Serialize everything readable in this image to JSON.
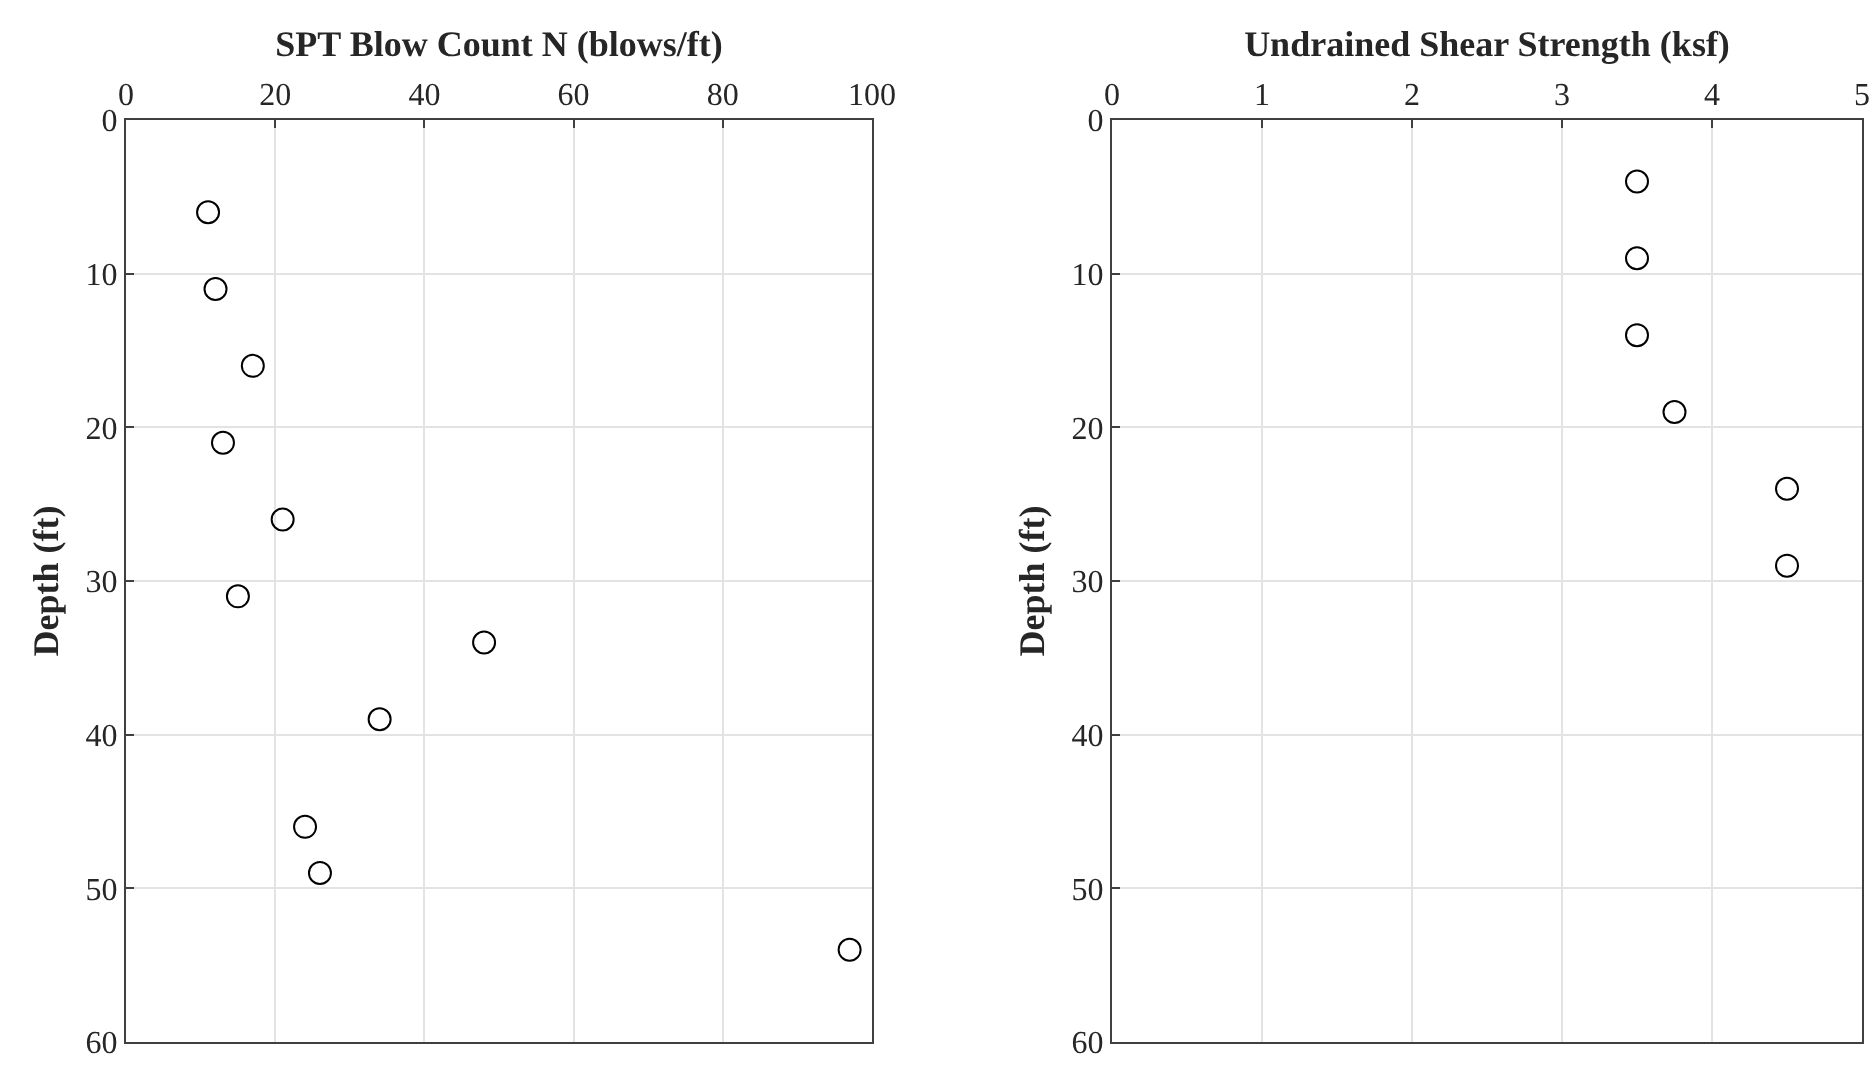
{
  "chart_data": [
    {
      "type": "scatter",
      "xlabel": "SPT Blow Count N (blows/ft)",
      "ylabel": "Depth (ft)",
      "x": [
        11,
        12,
        17,
        13,
        21,
        15,
        48,
        34,
        24,
        26,
        97
      ],
      "series": [
        {
          "color": "#000000",
          "values": [
            6,
            11,
            16,
            21,
            26,
            31,
            34,
            39,
            46,
            49,
            54
          ]
        }
      ],
      "xlim": [
        0,
        100
      ],
      "xticks": [
        0,
        20,
        40,
        60,
        80,
        100
      ],
      "ylim": [
        60,
        0
      ],
      "yticks": [
        0,
        10,
        20,
        30,
        40,
        50,
        60
      ],
      "grid": true,
      "marker": "circle"
    },
    {
      "type": "scatter",
      "xlabel": "Undrained Shear Strength (ksf)",
      "ylabel": "Depth (ft)",
      "x": [
        3.5,
        3.5,
        3.5,
        3.75,
        4.5,
        4.5
      ],
      "series": [
        {
          "color": "#000000",
          "values": [
            4,
            9,
            14,
            19,
            24,
            29
          ]
        }
      ],
      "xlim": [
        0,
        5
      ],
      "xticks": [
        0,
        1,
        2,
        3,
        4,
        5
      ],
      "ylim": [
        60,
        0
      ],
      "yticks": [
        0,
        10,
        20,
        30,
        40,
        50,
        60
      ],
      "grid": true,
      "marker": "circle"
    }
  ]
}
